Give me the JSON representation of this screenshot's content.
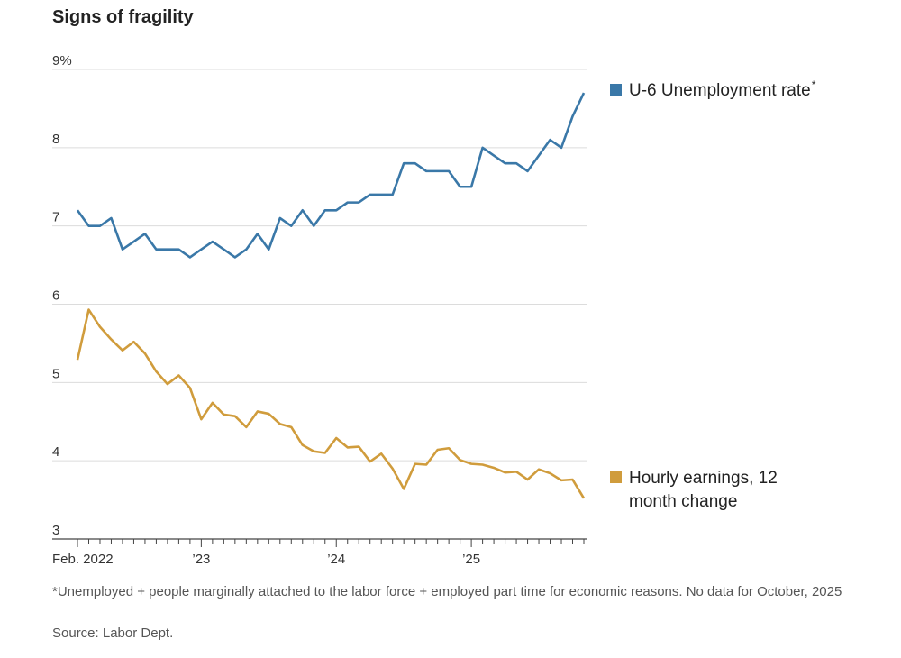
{
  "chart_data": {
    "type": "line",
    "title": "Signs of fragility",
    "y_unit_label": "9%",
    "y_ticks": [
      3,
      4,
      5,
      6,
      7,
      8,
      9
    ],
    "ylim": [
      3,
      9
    ],
    "x_ticks": [
      {
        "index": 0,
        "label": "Feb. 2022"
      },
      {
        "index": 11,
        "label": "’23"
      },
      {
        "index": 23,
        "label": "’24"
      },
      {
        "index": 35,
        "label": "’25"
      }
    ],
    "x_count": 46,
    "grid": true,
    "legend_placement": "right",
    "series": [
      {
        "name": "U-6 Unemployment rate",
        "name_suffix": "*",
        "color": "#3a78a8",
        "values": [
          7.2,
          7.0,
          7.0,
          7.1,
          6.7,
          6.8,
          6.9,
          6.7,
          6.7,
          6.7,
          6.6,
          6.7,
          6.8,
          6.7,
          6.6,
          6.7,
          6.9,
          6.7,
          7.1,
          7.0,
          7.2,
          7.0,
          7.2,
          7.2,
          7.3,
          7.3,
          7.4,
          7.4,
          7.4,
          7.8,
          7.8,
          7.7,
          7.7,
          7.7,
          7.5,
          7.5,
          8.0,
          7.9,
          7.8,
          7.8,
          7.7,
          7.9,
          8.1,
          8.0,
          8.4,
          8.7
        ]
      },
      {
        "name_lines": [
          "Hourly earnings, 12",
          "month change"
        ],
        "color": "#d09c3c",
        "values": [
          5.29,
          5.93,
          5.71,
          5.55,
          5.41,
          5.52,
          5.37,
          5.14,
          4.98,
          5.09,
          4.93,
          4.53,
          4.74,
          4.59,
          4.57,
          4.43,
          4.63,
          4.6,
          4.47,
          4.43,
          4.2,
          4.12,
          4.1,
          4.29,
          4.17,
          4.18,
          3.99,
          4.09,
          3.9,
          3.64,
          3.96,
          3.95,
          4.14,
          4.16,
          4.01,
          3.96,
          3.95,
          3.91,
          3.85,
          3.86,
          3.76,
          3.89,
          3.84,
          3.75,
          3.76,
          3.52
        ]
      }
    ]
  },
  "footnote": "*Unemployed + people marginally attached to the labor force + employed part time for economic reasons. No data for October, 2025",
  "source": "Source: Labor Dept."
}
